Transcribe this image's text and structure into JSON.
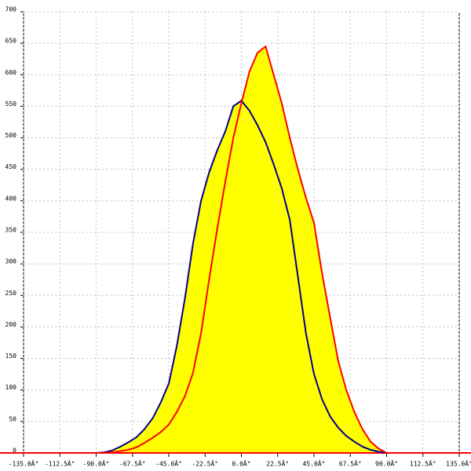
{
  "chart_data": {
    "type": "area",
    "x": [
      -90,
      -85,
      -80,
      -75,
      -70,
      -65,
      -60,
      -55,
      -50,
      -45,
      -40,
      -35,
      -30,
      -25,
      -20,
      -15,
      -10,
      -5,
      0,
      5,
      10,
      15,
      20,
      25,
      30,
      35,
      40,
      45,
      50,
      55,
      60,
      65,
      70,
      75,
      80,
      85,
      90
    ],
    "fill": "#ffff00",
    "series": [
      {
        "color": "#00008b",
        "values": [
          0,
          1,
          4,
          10,
          17,
          25,
          38,
          55,
          80,
          110,
          170,
          245,
          332,
          400,
          445,
          480,
          510,
          550,
          559,
          543,
          520,
          493,
          458,
          420,
          370,
          280,
          190,
          125,
          85,
          58,
          40,
          27,
          18,
          10,
          5,
          2,
          0
        ]
      },
      {
        "color": "#ff0000",
        "values": [
          0,
          0,
          1,
          3,
          5,
          9,
          16,
          24,
          33,
          45,
          65,
          90,
          127,
          190,
          275,
          355,
          430,
          500,
          555,
          605,
          635,
          645,
          600,
          555,
          500,
          450,
          405,
          365,
          285,
          215,
          146,
          100,
          65,
          38,
          18,
          7,
          0
        ]
      }
    ],
    "xlim": [
      -135,
      135
    ],
    "xticks": [
      {
        "value": -135,
        "label": "-135.0Â°"
      },
      {
        "value": -112.5,
        "label": "-112.5Â°"
      },
      {
        "value": -90,
        "label": "-90.0Â°"
      },
      {
        "value": -67.5,
        "label": "-67.5Â°"
      },
      {
        "value": -45,
        "label": "-45.0Â°"
      },
      {
        "value": -22.5,
        "label": "-22.5Â°"
      },
      {
        "value": 0,
        "label": "0.0Â°"
      },
      {
        "value": 22.5,
        "label": "22.5Â°"
      },
      {
        "value": 45,
        "label": "45.0Â°"
      },
      {
        "value": 67.5,
        "label": "67.5Â°"
      },
      {
        "value": 90,
        "label": "90.0Â°"
      },
      {
        "value": 112.5,
        "label": "112.5Â°"
      },
      {
        "value": 135,
        "label": "135.0Â°"
      }
    ],
    "ylim": [
      0,
      700
    ],
    "yticks": [
      0,
      50,
      100,
      150,
      200,
      250,
      300,
      350,
      400,
      450,
      500,
      550,
      600,
      650,
      700
    ],
    "grid": true
  }
}
